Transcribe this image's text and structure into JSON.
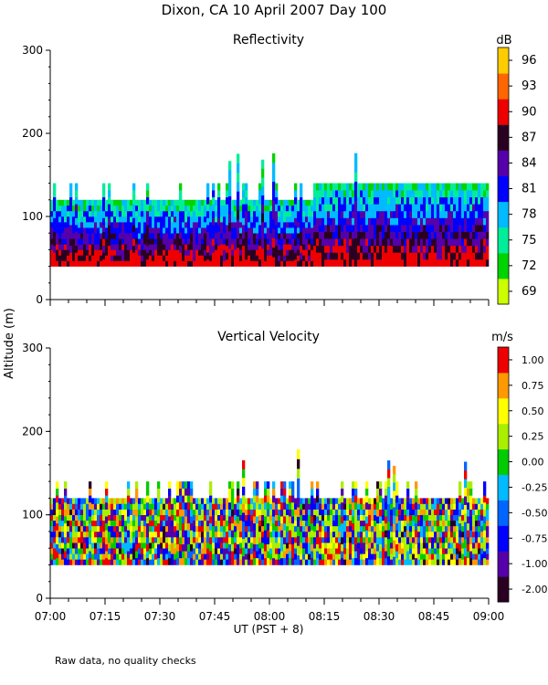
{
  "figure": {
    "title": "Dixon, CA 10 April 2007  Day 100",
    "ylabel": "Altitude (m)",
    "xlabel": "UT  (PST + 8)",
    "footnote": "Raw data, no quality checks"
  },
  "chart_data": [
    {
      "type": "heatmap",
      "title": "Reflectivity",
      "x_range": [
        "07:00",
        "09:00"
      ],
      "x_ticks": [
        "07:00",
        "07:15",
        "07:30",
        "07:45",
        "08:00",
        "08:15",
        "08:30",
        "08:45",
        "09:00"
      ],
      "ylim": [
        0,
        300
      ],
      "y_ticks": [
        0,
        100,
        200,
        300
      ],
      "colorbar": {
        "unit": "dB",
        "range": [
          67.5,
          97.5
        ],
        "tick_labels": [
          "69",
          "72",
          "75",
          "78",
          "81",
          "84",
          "87",
          "90",
          "93",
          "96"
        ],
        "colors": [
          "#ccff00",
          "#00d400",
          "#00ee99",
          "#00bbff",
          "#0000ff",
          "#5500aa",
          "#2a0022",
          "#ee0000",
          "#ff6600",
          "#ffcc00"
        ]
      },
      "data_altitude_range_m": [
        40,
        140
      ],
      "max_echo_top_m": 180
    },
    {
      "type": "heatmap",
      "title": "Vertical Velocity",
      "x_range": [
        "07:00",
        "09:00"
      ],
      "x_ticks": [
        "07:00",
        "07:15",
        "07:30",
        "07:45",
        "08:00",
        "08:15",
        "08:30",
        "08:45",
        "09:00"
      ],
      "ylim": [
        0,
        300
      ],
      "y_ticks": [
        0,
        100,
        200,
        300
      ],
      "colorbar": {
        "unit": "m/s",
        "tick_labels": [
          "-2.00",
          "-1.00",
          "-0.75",
          "-0.50",
          "-0.25",
          "0.00",
          "0.25",
          "0.50",
          "0.75",
          "1.00"
        ],
        "colors": [
          "#2a0022",
          "#5500aa",
          "#0000ff",
          "#0066ff",
          "#00bbff",
          "#00cc00",
          "#aaee00",
          "#ffff00",
          "#ff9900",
          "#ee0000"
        ]
      },
      "data_altitude_range_m": [
        40,
        140
      ],
      "max_echo_top_m": 180
    }
  ]
}
